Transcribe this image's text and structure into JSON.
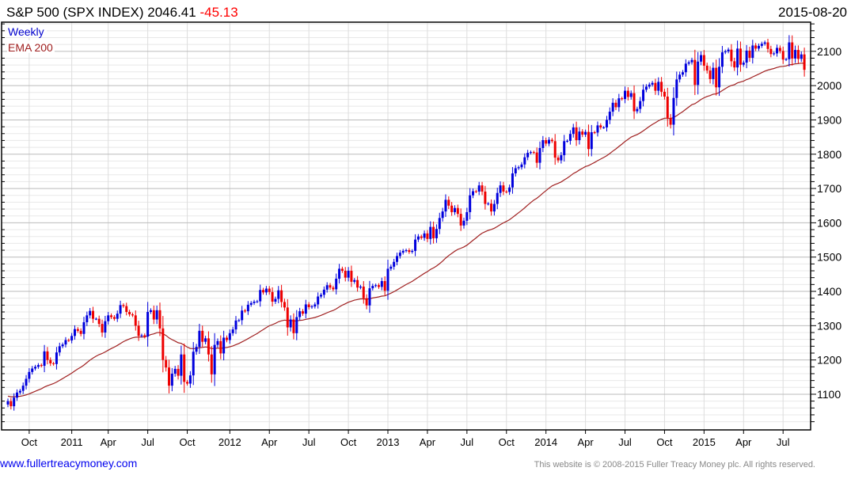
{
  "header": {
    "title": "S&P 500 (SPX INDEX) 2046.41",
    "change": "-45.13",
    "date": "2015-08-20"
  },
  "legend": {
    "frequency": "Weekly",
    "ema_label": "EMA 200"
  },
  "footer": {
    "site": "www.fullertreacymoney.com",
    "copyright": "This website is © 2008-2015 Fuller Treacy Money plc. All rights reserved."
  },
  "colors": {
    "up": "#0000dd",
    "down": "#ee0000",
    "ema": "#a02020",
    "legend_weekly": "#0000cc",
    "legend_ema": "#a02020"
  },
  "chart_data": {
    "type": "candlestick",
    "title": "S&P 500 (SPX INDEX)",
    "ylim": [
      996,
      2185
    ],
    "y_ticks": [
      1100,
      1200,
      1300,
      1400,
      1500,
      1600,
      1700,
      1800,
      1900,
      2000,
      2100
    ],
    "grid": true,
    "ema_period_days": 200,
    "x_ticks": [
      {
        "label": "Oct",
        "week": 7
      },
      {
        "label": "2011",
        "week": 21
      },
      {
        "label": "Apr",
        "week": 33
      },
      {
        "label": "Jul",
        "week": 46
      },
      {
        "label": "Oct",
        "week": 59
      },
      {
        "label": "2012",
        "week": 73
      },
      {
        "label": "Apr",
        "week": 86
      },
      {
        "label": "Jul",
        "week": 99
      },
      {
        "label": "Oct",
        "week": 112
      },
      {
        "label": "2013",
        "week": 125
      },
      {
        "label": "Apr",
        "week": 138
      },
      {
        "label": "Jul",
        "week": 151
      },
      {
        "label": "Oct",
        "week": 164
      },
      {
        "label": "2014",
        "week": 177
      },
      {
        "label": "Apr",
        "week": 190
      },
      {
        "label": "Jul",
        "week": 203
      },
      {
        "label": "Oct",
        "week": 216
      },
      {
        "label": "2015",
        "week": 229
      },
      {
        "label": "Apr",
        "week": 242
      },
      {
        "label": "Jul",
        "week": 255
      }
    ],
    "weekly_close": [
      1080,
      1065,
      1090,
      1105,
      1110,
      1125,
      1145,
      1165,
      1175,
      1180,
      1185,
      1183,
      1225,
      1200,
      1190,
      1188,
      1222,
      1240,
      1245,
      1258,
      1257,
      1270,
      1290,
      1285,
      1276,
      1310,
      1330,
      1343,
      1320,
      1320,
      1305,
      1280,
      1313,
      1330,
      1325,
      1320,
      1335,
      1360,
      1357,
      1340,
      1333,
      1330,
      1300,
      1270,
      1272,
      1268,
      1340,
      1345,
      1318,
      1345,
      1292,
      1200,
      1178,
      1125,
      1160,
      1174,
      1154,
      1216,
      1136,
      1131,
      1155,
      1224,
      1238,
      1285,
      1253,
      1263,
      1216,
      1158,
      1244,
      1255,
      1219,
      1265,
      1258,
      1278,
      1289,
      1315,
      1316,
      1344,
      1342,
      1361,
      1366,
      1370,
      1371,
      1404,
      1397,
      1408,
      1398,
      1370,
      1378,
      1403,
      1369,
      1353,
      1295,
      1318,
      1278,
      1325,
      1342,
      1335,
      1362,
      1354,
      1356,
      1362,
      1385,
      1390,
      1405,
      1418,
      1411,
      1406,
      1437,
      1466,
      1460,
      1440,
      1460,
      1428,
      1433,
      1411,
      1414,
      1380,
      1359,
      1409,
      1416,
      1418,
      1413,
      1430,
      1402,
      1466,
      1472,
      1486,
      1503,
      1513,
      1518,
      1520,
      1515,
      1518,
      1551,
      1560,
      1556,
      1569,
      1553,
      1588,
      1555,
      1582,
      1614,
      1633,
      1667,
      1650,
      1631,
      1643,
      1626,
      1592,
      1606,
      1631,
      1680,
      1692,
      1691,
      1709,
      1691,
      1655,
      1656,
      1633,
      1655,
      1687,
      1709,
      1691,
      1690,
      1703,
      1744,
      1759,
      1762,
      1770,
      1791,
      1804,
      1806,
      1805,
      1775,
      1818,
      1841,
      1831,
      1842,
      1838,
      1790,
      1782,
      1797,
      1838,
      1839,
      1859,
      1878,
      1841,
      1866,
      1857,
      1865,
      1815,
      1864,
      1863,
      1884,
      1878,
      1878,
      1900,
      1924,
      1950,
      1937,
      1963,
      1961,
      1985,
      1967,
      1978,
      1925,
      1932,
      1955,
      1988,
      1997,
      2003,
      2008,
      1985,
      2011,
      1982,
      1968,
      1906,
      1886,
      1964,
      2018,
      2032,
      2039,
      2064,
      2068,
      2075,
      2002,
      2070,
      2089,
      2058,
      2044,
      2019,
      2052,
      1995,
      2055,
      2097,
      2100,
      2105,
      2071,
      2053,
      2108,
      2061,
      2067,
      2102,
      2081,
      2117,
      2108,
      2116,
      2122,
      2126,
      2107,
      2092,
      2094,
      2110,
      2101,
      2076,
      2077,
      2126,
      2079,
      2104,
      2078,
      2091,
      2046
    ],
    "first_open": 1070
  }
}
